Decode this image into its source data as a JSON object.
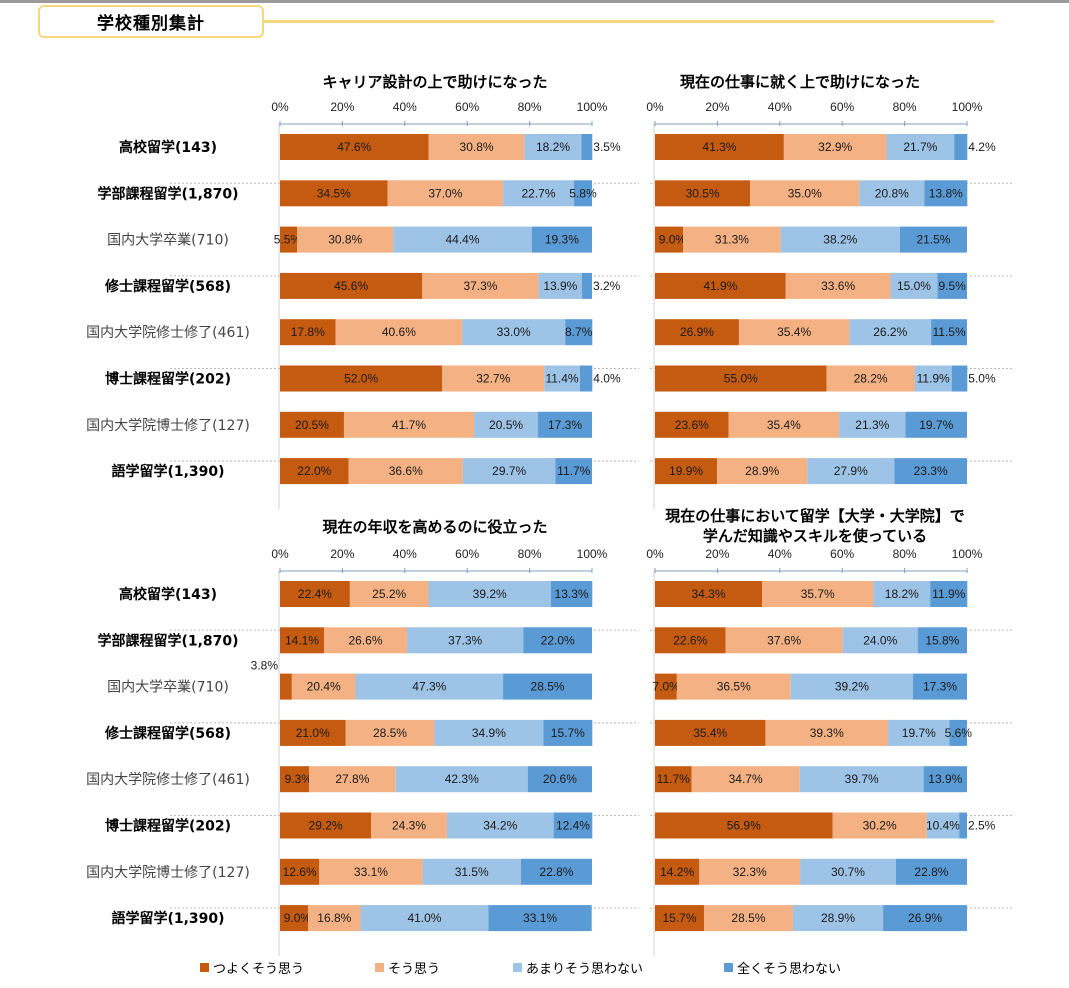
{
  "header": {
    "title": "学校種別集計"
  },
  "colors": {
    "strongly_agree": "#c55a11",
    "agree": "#f4b183",
    "disagree_somewhat": "#9dc3e6",
    "strongly_disagree": "#5b9bd5",
    "header_accent": "#f5d77e"
  },
  "legend": [
    {
      "label": "つよくそう思う",
      "color_key": "strongly_agree"
    },
    {
      "label": "そう思う",
      "color_key": "agree"
    },
    {
      "label": "あまりそう思わない",
      "color_key": "disagree_somewhat"
    },
    {
      "label": "全くそう思わない",
      "color_key": "strongly_disagree"
    }
  ],
  "categories": [
    {
      "label": "高校留学(143)",
      "bold": true
    },
    {
      "label": "学部課程留学(1,870)",
      "bold": true
    },
    {
      "label": "国内大学卒業(710)",
      "bold": false
    },
    {
      "label": "修士課程留学(568)",
      "bold": true
    },
    {
      "label": "国内大学院修士修了(461)",
      "bold": false
    },
    {
      "label": "博士課程留学(202)",
      "bold": true
    },
    {
      "label": "国内大学院博士修了(127)",
      "bold": false
    },
    {
      "label": "語学留学(1,390)",
      "bold": true
    }
  ],
  "chart_data": [
    {
      "type": "bar",
      "stacked": true,
      "orientation": "horizontal",
      "title": [
        "キャリア設計の上で助けになった"
      ],
      "xlim": [
        0,
        100
      ],
      "x_ticks": [
        "0%",
        "20%",
        "40%",
        "60%",
        "80%",
        "100%"
      ],
      "categories": [
        "高校留学(143)",
        "学部課程留学(1,870)",
        "国内大学卒業(710)",
        "修士課程留学(568)",
        "国内大学院修士修了(461)",
        "博士課程留学(202)",
        "国内大学院博士修了(127)",
        "語学留学(1,390)"
      ],
      "series": [
        {
          "name": "つよくそう思う",
          "values": [
            47.6,
            34.5,
            5.5,
            45.6,
            17.8,
            52.0,
            20.5,
            22.0
          ]
        },
        {
          "name": "そう思う",
          "values": [
            30.8,
            37.0,
            30.8,
            37.3,
            40.6,
            32.7,
            41.7,
            36.6
          ]
        },
        {
          "name": "あまりそう思わない",
          "values": [
            18.2,
            22.7,
            44.4,
            13.9,
            33.0,
            11.4,
            20.5,
            29.7
          ]
        },
        {
          "name": "全くそう思わない",
          "values": [
            3.5,
            5.8,
            19.3,
            3.2,
            8.7,
            4.0,
            17.3,
            11.7
          ]
        }
      ]
    },
    {
      "type": "bar",
      "stacked": true,
      "orientation": "horizontal",
      "title": [
        "現在の仕事に就く上で助けになった"
      ],
      "xlim": [
        0,
        100
      ],
      "x_ticks": [
        "0%",
        "20%",
        "40%",
        "60%",
        "80%",
        "100%"
      ],
      "categories": [
        "高校留学(143)",
        "学部課程留学(1,870)",
        "国内大学卒業(710)",
        "修士課程留学(568)",
        "国内大学院修士修了(461)",
        "博士課程留学(202)",
        "国内大学院博士修了(127)",
        "語学留学(1,390)"
      ],
      "series": [
        {
          "name": "つよくそう思う",
          "values": [
            41.3,
            30.5,
            9.0,
            41.9,
            26.9,
            55.0,
            23.6,
            19.9
          ]
        },
        {
          "name": "そう思う",
          "values": [
            32.9,
            35.0,
            31.3,
            33.6,
            35.4,
            28.2,
            35.4,
            28.9
          ]
        },
        {
          "name": "あまりそう思わない",
          "values": [
            21.7,
            20.8,
            38.2,
            15.0,
            26.2,
            11.9,
            21.3,
            27.9
          ]
        },
        {
          "name": "全くそう思わない",
          "values": [
            4.2,
            13.8,
            21.5,
            9.5,
            11.5,
            5.0,
            19.7,
            23.3
          ]
        }
      ]
    },
    {
      "type": "bar",
      "stacked": true,
      "orientation": "horizontal",
      "title": [
        "現在の年収を高めるのに役立った"
      ],
      "xlim": [
        0,
        100
      ],
      "x_ticks": [
        "0%",
        "20%",
        "40%",
        "60%",
        "80%",
        "100%"
      ],
      "categories": [
        "高校留学(143)",
        "学部課程留学(1,870)",
        "国内大学卒業(710)",
        "修士課程留学(568)",
        "国内大学院修士修了(461)",
        "博士課程留学(202)",
        "国内大学院博士修了(127)",
        "語学留学(1,390)"
      ],
      "series": [
        {
          "name": "つよくそう思う",
          "values": [
            22.4,
            14.1,
            3.8,
            21.0,
            9.3,
            29.2,
            12.6,
            9.0
          ]
        },
        {
          "name": "そう思う",
          "values": [
            25.2,
            26.6,
            20.4,
            28.5,
            27.8,
            24.3,
            33.1,
            16.8
          ]
        },
        {
          "name": "あまりそう思わない",
          "values": [
            39.2,
            37.3,
            47.3,
            34.9,
            42.3,
            34.2,
            31.5,
            41.0
          ]
        },
        {
          "name": "全くそう思わない",
          "values": [
            13.3,
            22.0,
            28.5,
            15.7,
            20.6,
            12.4,
            22.8,
            33.1
          ]
        }
      ]
    },
    {
      "type": "bar",
      "stacked": true,
      "orientation": "horizontal",
      "title": [
        "現在の仕事において留学【大学・大学院】で",
        "学んだ知識やスキルを使っている"
      ],
      "xlim": [
        0,
        100
      ],
      "x_ticks": [
        "0%",
        "20%",
        "40%",
        "60%",
        "80%",
        "100%"
      ],
      "categories": [
        "高校留学(143)",
        "学部課程留学(1,870)",
        "国内大学卒業(710)",
        "修士課程留学(568)",
        "国内大学院修士修了(461)",
        "博士課程留学(202)",
        "国内大学院博士修了(127)",
        "語学留学(1,390)"
      ],
      "series": [
        {
          "name": "つよくそう思う",
          "values": [
            34.3,
            22.6,
            7.0,
            35.4,
            11.7,
            56.9,
            14.2,
            15.7
          ]
        },
        {
          "name": "そう思う",
          "values": [
            35.7,
            37.6,
            36.5,
            39.3,
            34.7,
            30.2,
            32.3,
            28.5
          ]
        },
        {
          "name": "あまりそう思わない",
          "values": [
            18.2,
            24.0,
            39.2,
            19.7,
            39.7,
            10.4,
            30.7,
            28.9
          ]
        },
        {
          "name": "全くそう思わない",
          "values": [
            11.9,
            15.8,
            17.3,
            5.6,
            13.9,
            2.5,
            22.8,
            26.9
          ]
        }
      ]
    }
  ]
}
